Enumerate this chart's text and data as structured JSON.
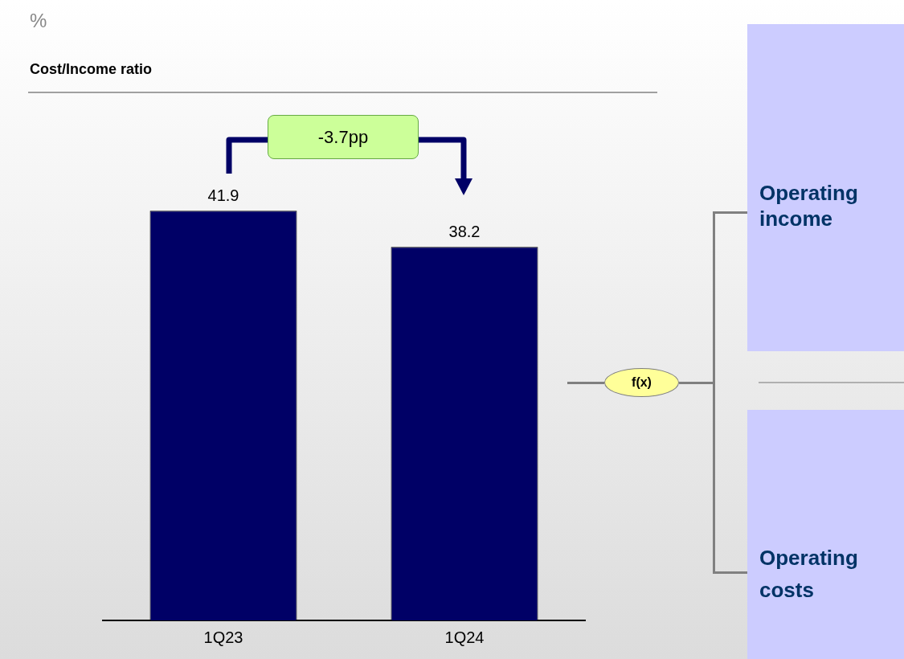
{
  "chart_data": {
    "type": "bar",
    "title": "Cost/Income ratio",
    "categories": [
      "1Q23",
      "1Q24"
    ],
    "values": [
      41.9,
      38.2
    ],
    "color": "#000066",
    "ylim": [
      0,
      54
    ],
    "data_labels": true,
    "grid": false,
    "legend": false,
    "annotations": [
      "%",
      "-3.7pp",
      "f(x)",
      "Operating income",
      "Operating costs"
    ]
  }
}
